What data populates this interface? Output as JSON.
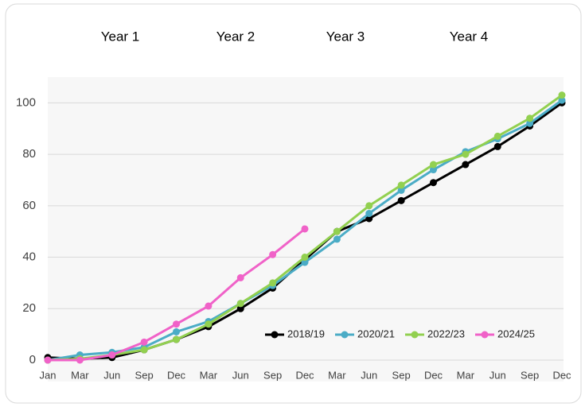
{
  "chart_data": {
    "type": "line",
    "annotations": [
      "Year 1",
      "Year 2",
      "Year 3",
      "Year 4"
    ],
    "categories": [
      "Jan",
      "Mar",
      "Jun",
      "Sep",
      "Dec",
      "Mar",
      "Jun",
      "Sep",
      "Dec",
      "Mar",
      "Jun",
      "Sep",
      "Dec",
      "Mar",
      "Jun",
      "Sep",
      "Dec"
    ],
    "series": [
      {
        "name": "2018/19",
        "color": "#000000",
        "values": [
          1,
          0.5,
          1,
          4,
          8,
          13,
          20,
          28,
          39,
          50,
          55,
          62,
          69,
          76,
          83,
          91,
          100
        ]
      },
      {
        "name": "2020/21",
        "color": "#4bacc6",
        "values": [
          0,
          2,
          3,
          5,
          11,
          15,
          22,
          29,
          38,
          47,
          57,
          66,
          74,
          81,
          86,
          92,
          101
        ]
      },
      {
        "name": "2022/23",
        "color": "#92d050",
        "values": [
          0,
          0.5,
          2,
          4,
          8,
          14,
          22,
          30,
          40,
          50,
          60,
          68,
          76,
          80,
          87,
          94,
          103
        ]
      },
      {
        "name": "2024/25",
        "color": "#f062c8",
        "values": [
          0,
          0,
          2,
          7,
          14,
          21,
          32,
          41,
          51,
          null,
          null,
          null,
          null,
          null,
          null,
          null,
          null
        ]
      }
    ],
    "ylim": [
      0,
      110
    ],
    "yticks": [
      0,
      20,
      40,
      60,
      80,
      100
    ],
    "grid": true,
    "legend": "bottom-right"
  }
}
